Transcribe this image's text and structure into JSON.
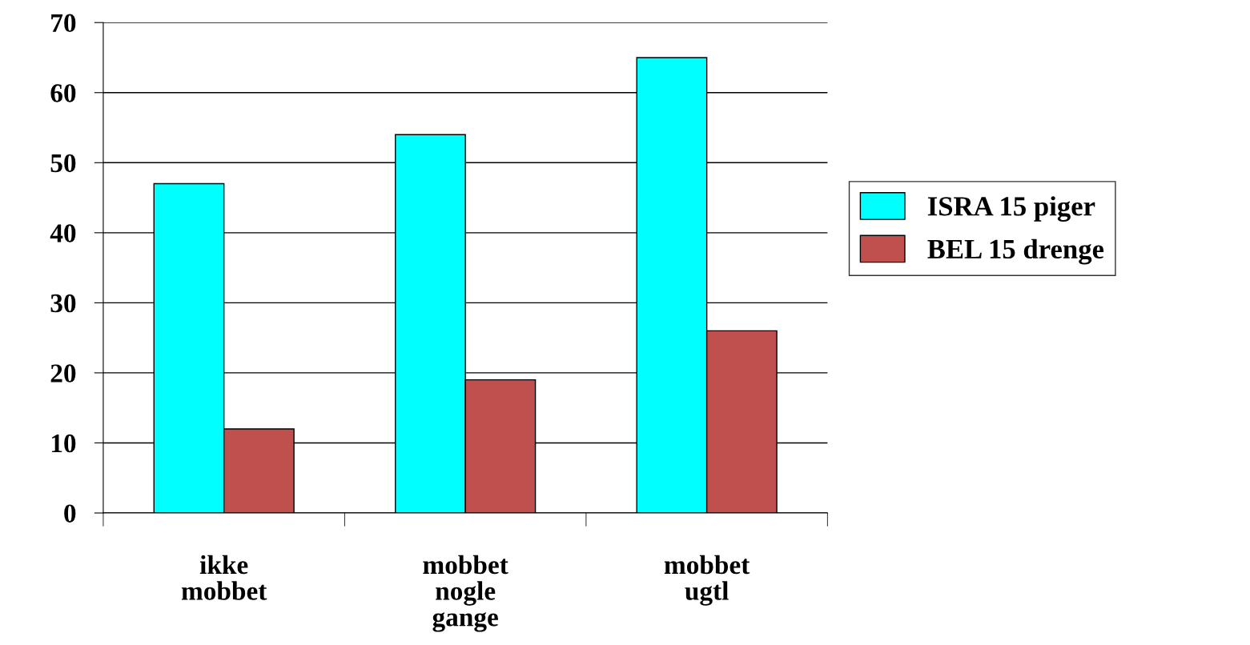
{
  "chart_data": {
    "type": "bar",
    "categories": [
      "ikke\nmobbet",
      "mobbet\nnogle\ngange",
      "mobbet\nugtl"
    ],
    "series": [
      {
        "name": "ISRA 15 piger",
        "color": "#00ffff",
        "values": [
          47,
          54,
          65
        ]
      },
      {
        "name": "BEL 15 drenge",
        "color": "#c0504d",
        "values": [
          12,
          19,
          26
        ]
      }
    ],
    "ylim": [
      0,
      70
    ],
    "yticks": [
      0,
      10,
      20,
      30,
      40,
      50,
      60,
      70
    ],
    "grid": "y",
    "legend": "right"
  }
}
